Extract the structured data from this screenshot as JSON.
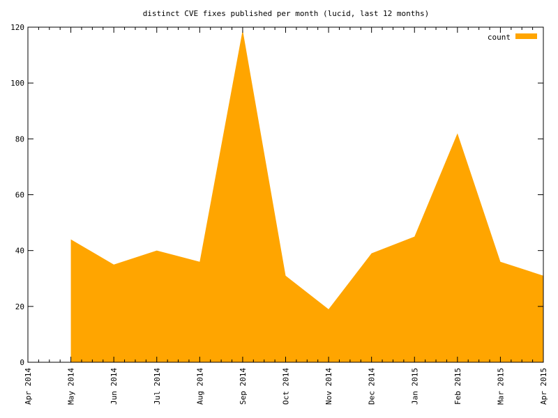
{
  "chart_data": {
    "type": "area",
    "title": "distinct CVE fixes published per month (lucid, last 12 months)",
    "xlabel": "",
    "ylabel": "",
    "x": [
      "May 2014",
      "Jun 2014",
      "Jul 2014",
      "Aug 2014",
      "Sep 2014",
      "Oct 2014",
      "Nov 2014",
      "Dec 2014",
      "Jan 2015",
      "Feb 2015",
      "Mar 2015",
      "Apr 2015"
    ],
    "x_ticks": [
      "Apr 2014",
      "May 2014",
      "Jun 2014",
      "Jul 2014",
      "Aug 2014",
      "Sep 2014",
      "Oct 2014",
      "Nov 2014",
      "Dec 2014",
      "Jan 2015",
      "Feb 2015",
      "Mar 2015",
      "Apr 2015"
    ],
    "series": [
      {
        "name": "count",
        "values": [
          44,
          35,
          40,
          36,
          119,
          31,
          19,
          39,
          45,
          82,
          36,
          31
        ]
      }
    ],
    "ylim": [
      0,
      120
    ],
    "y_ticks": [
      0,
      20,
      40,
      60,
      80,
      100,
      120
    ],
    "grid": false,
    "legend_position": "top-right",
    "colors": {
      "fill": "#ffa500",
      "axis": "#000000",
      "background": "#ffffff"
    }
  }
}
